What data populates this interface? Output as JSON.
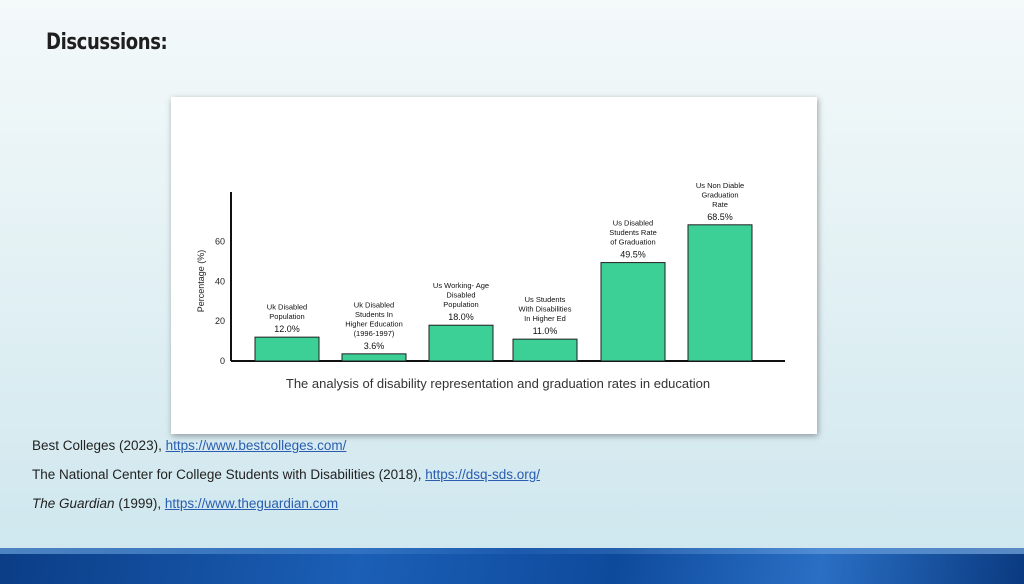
{
  "slide": {
    "title": "Discussions:"
  },
  "chart_data": {
    "type": "bar",
    "title": "The analysis of disability representation and graduation rates in education",
    "ylabel": "Percentage (%)",
    "ylim": [
      0,
      85
    ],
    "yticks": [
      0,
      20,
      40,
      60
    ],
    "color": "#3ccf96",
    "categories": [
      [
        "Uk Disabled",
        "Population"
      ],
      [
        "Uk Disabled",
        "Students In",
        "Higher Education",
        "(1996-1997)"
      ],
      [
        "Us Working- Age",
        "Disabled",
        "Population"
      ],
      [
        "Us Students",
        "With Disabilities",
        "In Higher Ed"
      ],
      [
        "Us Disabled",
        "Students Rate",
        "of Graduation"
      ],
      [
        "Us Non Diable",
        "Graduation",
        "Rate"
      ]
    ],
    "values": [
      12.0,
      3.6,
      18.0,
      11.0,
      49.5,
      68.5
    ],
    "value_labels": [
      "12.0%",
      "3.6%",
      "18.0%",
      "11.0%",
      "49.5%",
      "68.5%"
    ]
  },
  "references": [
    {
      "prefix": "Best Colleges (2023), ",
      "italic": "",
      "link": "https://www.bestcolleges.com/"
    },
    {
      "prefix": "The National Center for College Students with Disabilities (2018), ",
      "italic": "",
      "link": "https://dsq-sds.org/"
    },
    {
      "prefix": " (1999), ",
      "italic": "The Guardian",
      "link": "https://www.theguardian.com"
    }
  ]
}
